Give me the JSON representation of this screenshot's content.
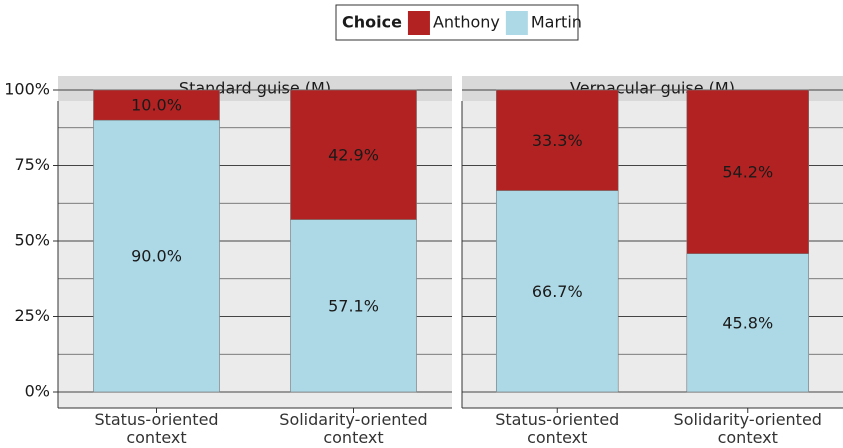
{
  "chart_data": {
    "type": "bar",
    "stacked": true,
    "legend": {
      "title": "Choice"
    },
    "grid": true,
    "ylim": [
      0,
      100
    ],
    "yticks": [
      {
        "value": 0,
        "label": "0%"
      },
      {
        "value": 25,
        "label": "25%"
      },
      {
        "value": 50,
        "label": "50%"
      },
      {
        "value": 75,
        "label": "75%"
      },
      {
        "value": 100,
        "label": "100%"
      }
    ],
    "series": [
      {
        "name": "Anthony",
        "color": "#b22222"
      },
      {
        "name": "Martin",
        "color": "#add8e6"
      }
    ],
    "panels": [
      {
        "title": "Standard guise (M)",
        "categories": [
          "Status-oriented context",
          "Solidarity-oriented context"
        ],
        "series": [
          {
            "values": [
              10.0,
              42.9
            ],
            "value_labels": [
              "10.0%",
              "42.9%"
            ]
          },
          {
            "values": [
              90.0,
              57.1
            ],
            "value_labels": [
              "90.0%",
              "57.1%"
            ]
          }
        ]
      },
      {
        "title": "Vernacular guise (M)",
        "categories": [
          "Status-oriented context",
          "Solidarity-oriented context"
        ],
        "series": [
          {
            "values": [
              33.3,
              54.2
            ],
            "value_labels": [
              "33.3%",
              "54.2%"
            ]
          },
          {
            "values": [
              66.7,
              45.8
            ],
            "value_labels": [
              "66.7%",
              "45.8%"
            ]
          }
        ]
      }
    ]
  }
}
